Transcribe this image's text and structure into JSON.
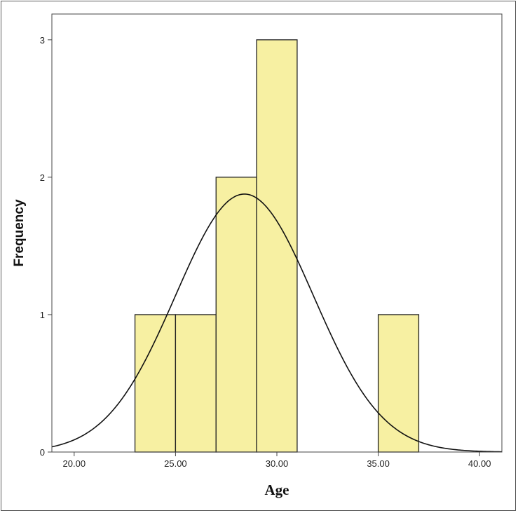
{
  "chart_data": {
    "type": "bar",
    "subtype": "histogram",
    "xlabel": "Age",
    "ylabel": "Frequency",
    "xlim": [
      18.9,
      41.1
    ],
    "ylim": [
      0,
      3.05
    ],
    "x_ticks": [
      20,
      25,
      30,
      35,
      40
    ],
    "x_tick_labels": [
      "20.00",
      "25.00",
      "30.00",
      "35.00",
      "40.00"
    ],
    "y_ticks": [
      0,
      1,
      2,
      3
    ],
    "y_tick_labels": [
      "0",
      "1",
      "2",
      "3"
    ],
    "bins": [
      {
        "start": 23,
        "end": 25,
        "count": 1
      },
      {
        "start": 25,
        "end": 27,
        "count": 1
      },
      {
        "start": 27,
        "end": 29,
        "count": 2
      },
      {
        "start": 29,
        "end": 31,
        "count": 3
      },
      {
        "start": 35,
        "end": 37,
        "count": 1
      }
    ],
    "normal_curve": {
      "mean": 28.4,
      "sd": 3.4,
      "n": 8,
      "bin_width": 2
    },
    "grid": false,
    "legend": "none",
    "colors": {
      "bar_fill": "#f7f0a2",
      "bar_stroke": "#222222",
      "curve": "#111111",
      "axis": "#444444"
    }
  }
}
